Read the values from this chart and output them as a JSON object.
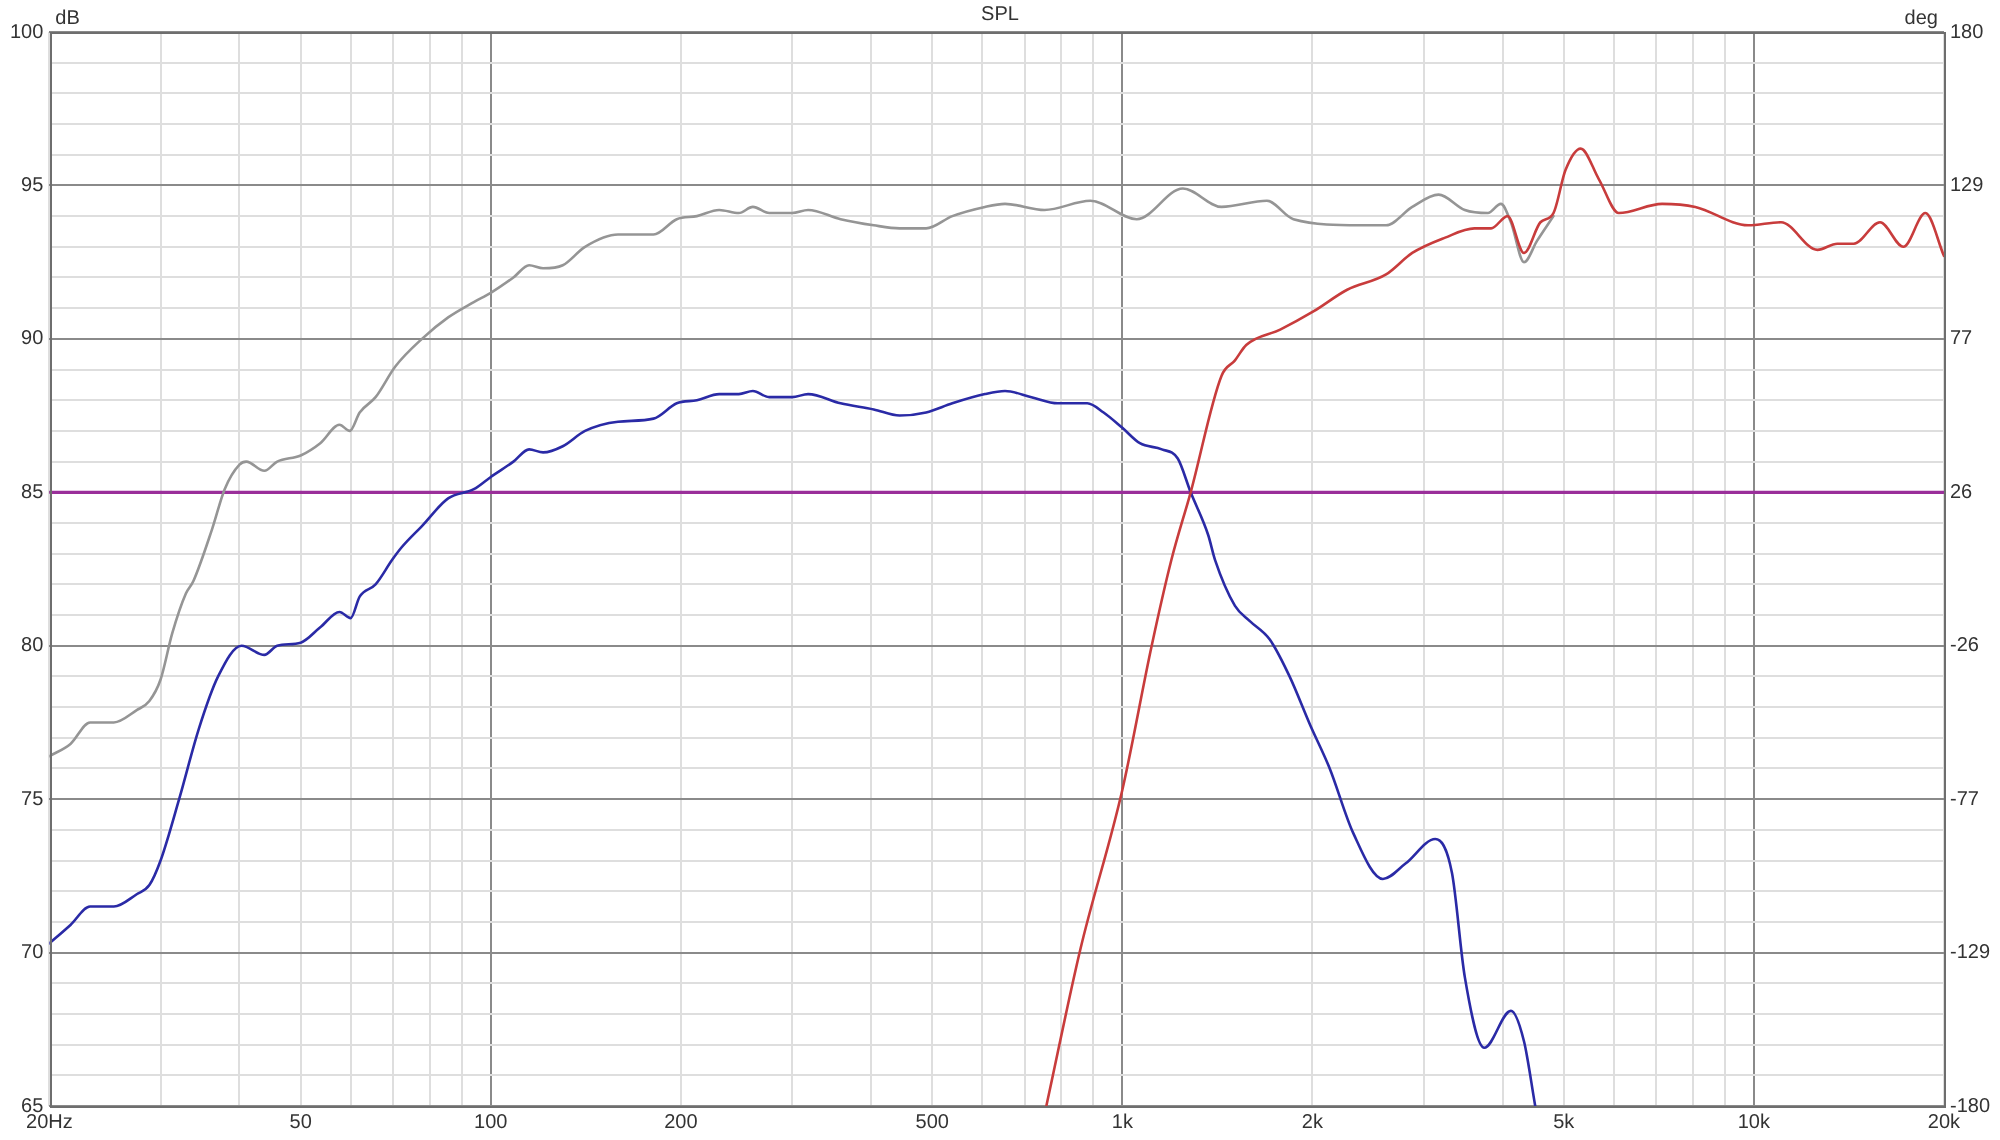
{
  "chart_data": {
    "type": "line",
    "title": "SPL",
    "ylabel": "dB",
    "y2label": "deg",
    "log": "x",
    "grid": true,
    "xlim": [
      20,
      20000
    ],
    "xticks": [
      {
        "value": 20,
        "label": "20Hz"
      },
      {
        "value": 30,
        "label": null
      },
      {
        "value": 40,
        "label": null
      },
      50,
      {
        "value": 60,
        "label": null
      },
      {
        "value": 70,
        "label": null
      },
      {
        "value": 80,
        "label": null
      },
      {
        "value": 90,
        "label": null
      },
      100,
      200,
      {
        "value": 300,
        "label": null
      },
      {
        "value": 400,
        "label": null
      },
      500,
      {
        "value": 600,
        "label": null
      },
      {
        "value": 700,
        "label": null
      },
      {
        "value": 800,
        "label": null
      },
      {
        "value": 900,
        "label": null
      },
      {
        "value": 1000,
        "label": "1k"
      },
      {
        "value": 2000,
        "label": "2k"
      },
      {
        "value": 3000,
        "label": null
      },
      {
        "value": 4000,
        "label": null
      },
      {
        "value": 5000,
        "label": "5k"
      },
      {
        "value": 6000,
        "label": null
      },
      {
        "value": 7000,
        "label": null
      },
      {
        "value": 8000,
        "label": null
      },
      {
        "value": 9000,
        "label": null
      },
      {
        "value": 10000,
        "label": "10k"
      },
      {
        "value": 20000,
        "label": "20k"
      }
    ],
    "ylim": [
      65,
      100
    ],
    "yticks": [
      65,
      {
        "value": 66,
        "label": null
      },
      {
        "value": 67,
        "label": null
      },
      {
        "value": 68,
        "label": null
      },
      {
        "value": 69,
        "label": null
      },
      70,
      {
        "value": 71,
        "label": null
      },
      {
        "value": 72,
        "label": null
      },
      {
        "value": 73,
        "label": null
      },
      {
        "value": 74,
        "label": null
      },
      75,
      {
        "value": 76,
        "label": null
      },
      {
        "value": 77,
        "label": null
      },
      {
        "value": 78,
        "label": null
      },
      {
        "value": 79,
        "label": null
      },
      80,
      {
        "value": 81,
        "label": null
      },
      {
        "value": 82,
        "label": null
      },
      {
        "value": 83,
        "label": null
      },
      {
        "value": 84,
        "label": null
      },
      85,
      {
        "value": 86,
        "label": null
      },
      {
        "value": 87,
        "label": null
      },
      {
        "value": 88,
        "label": null
      },
      {
        "value": 89,
        "label": null
      },
      90,
      {
        "value": 91,
        "label": null
      },
      {
        "value": 92,
        "label": null
      },
      {
        "value": 93,
        "label": null
      },
      {
        "value": 94,
        "label": null
      },
      95,
      {
        "value": 96,
        "label": null
      },
      {
        "value": 97,
        "label": null
      },
      {
        "value": 98,
        "label": null
      },
      {
        "value": 99,
        "label": null
      },
      100
    ],
    "y2lim": [
      -180,
      180
    ],
    "y2ticks": [
      -180,
      {
        "value": -128.571,
        "label": "-129"
      },
      {
        "value": -77.143,
        "label": "-77"
      },
      {
        "value": -25.714,
        "label": "-26"
      },
      {
        "value": 25.714,
        "label": "26"
      },
      {
        "value": 77.143,
        "label": "77"
      },
      {
        "value": 128.571,
        "label": "129"
      },
      180
    ],
    "ref_lines": [
      {
        "axis": "y",
        "value": 85,
        "color": "#9a2f9a"
      }
    ],
    "series": [
      {
        "color": "#959595",
        "x": [
          20,
          21.6,
          23.2,
          25.3,
          27.5,
          28.8,
          30,
          31.3,
          32.9,
          33.8,
          36.2,
          37.9,
          40,
          41,
          43.8,
          45.9,
          50,
          53.7,
          57.6,
          59.8,
          62,
          65.7,
          70.6,
          77.8,
          85.6,
          94,
          100,
          108.6,
          115,
          121,
          130,
          141,
          159,
          181,
          197,
          212,
          230,
          247,
          260,
          276,
          300,
          318,
          358,
          404,
          444,
          489,
          538,
          606,
          652,
          753,
          890,
          1054,
          1247,
          1436,
          1694,
          1866,
          2378,
          2616,
          2878,
          3168,
          3486,
          3792,
          3976,
          4124,
          4326,
          4538,
          4816
        ],
        "values": [
          76.4,
          76.8,
          77.5,
          77.5,
          77.9,
          78.2,
          78.9,
          80.4,
          81.7,
          82.1,
          83.8,
          85.1,
          85.9,
          86.0,
          85.7,
          86.0,
          86.2,
          86.6,
          87.2,
          87.0,
          87.6,
          88.1,
          89.1,
          90.0,
          90.7,
          91.2,
          91.5,
          92.0,
          92.4,
          92.3,
          92.4,
          93.0,
          93.4,
          93.4,
          93.9,
          94.0,
          94.2,
          94.1,
          94.3,
          94.1,
          94.1,
          94.2,
          93.9,
          93.7,
          93.6,
          93.6,
          94.0,
          94.3,
          94.4,
          94.2,
          94.5,
          93.9,
          94.9,
          94.3,
          94.5,
          93.9,
          93.7,
          93.7,
          94.3,
          94.7,
          94.2,
          94.1,
          94.4,
          93.8,
          92.5,
          93.2,
          94.0
        ]
      },
      {
        "color": "#2a2aa6",
        "x": [
          20,
          21.6,
          23.2,
          25.3,
          27.5,
          28.8,
          30,
          32.1,
          34.5,
          37,
          40.3,
          43.8,
          45.9,
          50,
          53.7,
          57.6,
          60,
          62,
          65.7,
          69.8,
          72.2,
          77.8,
          85.6,
          94,
          100,
          108.6,
          115,
          121,
          130,
          141,
          159,
          181,
          197,
          212,
          230,
          247,
          260,
          276,
          300,
          318,
          358,
          404,
          444,
          489,
          538,
          606,
          652,
          718,
          790,
          880,
          934,
          1000,
          1066,
          1155,
          1224,
          1283,
          1368,
          1402,
          1508,
          1592,
          1712,
          1840,
          1985,
          2130,
          2320,
          2586,
          2808,
          3130,
          3326,
          3486,
          3742,
          4124,
          4326,
          4506
        ],
        "values": [
          70.3,
          70.9,
          71.5,
          71.5,
          71.9,
          72.2,
          73.0,
          75.0,
          77.3,
          79.0,
          80.0,
          79.7,
          80.0,
          80.1,
          80.6,
          81.1,
          80.9,
          81.6,
          82.0,
          82.8,
          83.2,
          83.9,
          84.8,
          85.1,
          85.5,
          86.0,
          86.4,
          86.3,
          86.5,
          87.0,
          87.3,
          87.4,
          87.9,
          88.0,
          88.2,
          88.2,
          88.3,
          88.1,
          88.1,
          88.2,
          87.9,
          87.7,
          87.5,
          87.6,
          87.9,
          88.2,
          88.3,
          88.1,
          87.9,
          87.9,
          87.6,
          87.1,
          86.6,
          86.4,
          86.1,
          85.0,
          83.6,
          82.8,
          81.3,
          80.8,
          80.2,
          79.0,
          77.4,
          76.0,
          73.9,
          72.4,
          72.9,
          73.7,
          72.6,
          69.2,
          66.9,
          68.1,
          67.1,
          65
        ]
      },
      {
        "color": "#c83c3c",
        "x": [
          758,
          858,
          1000,
          1113,
          1196,
          1283,
          1436,
          1508,
          1571,
          1778,
          2010,
          2270,
          2616,
          2878,
          3245,
          3610,
          3836,
          4074,
          4326,
          4592,
          4816,
          5032,
          5318,
          5684,
          6112,
          7156,
          8078,
          9790,
          11040,
          12608,
          13556,
          14394,
          15840,
          17250,
          18690,
          20000
        ],
        "values": [
          65,
          70.1,
          75.3,
          80.0,
          82.8,
          85.0,
          88.8,
          89.3,
          89.8,
          90.3,
          90.9,
          91.6,
          92.1,
          92.8,
          93.3,
          93.6,
          93.6,
          94.0,
          92.8,
          93.8,
          94.1,
          95.5,
          96.2,
          95.2,
          94.1,
          94.4,
          94.3,
          93.7,
          93.8,
          92.9,
          93.1,
          93.1,
          93.8,
          93.0,
          94.1,
          92.7
        ]
      }
    ]
  }
}
